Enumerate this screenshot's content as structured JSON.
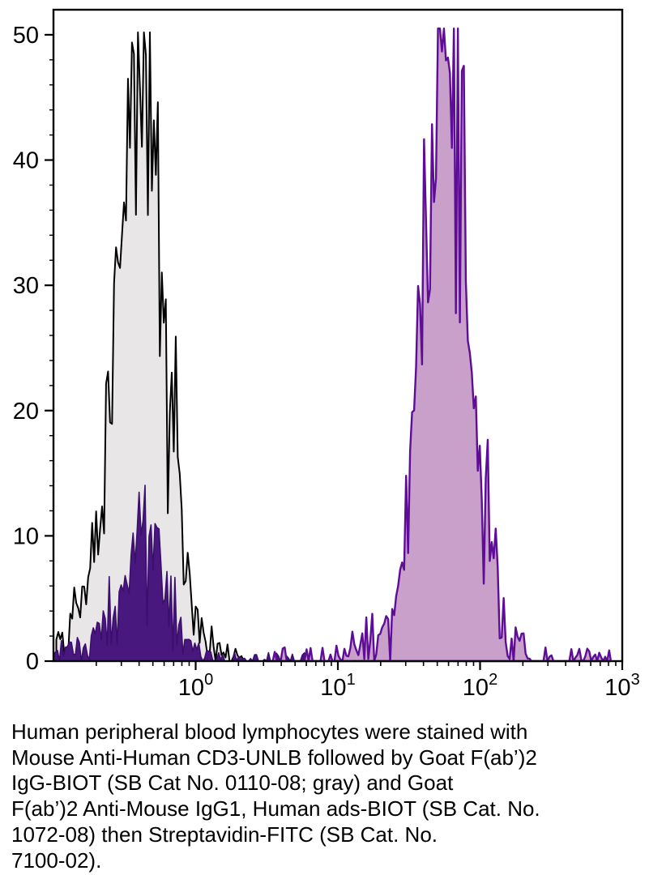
{
  "caption": {
    "text": "Human peripheral blood lymphocytes were stained with\nMouse Anti-Human CD3-UNLB followed by Goat F(ab’)2\nIgG-BIOT (SB Cat  No. 0110-08; gray) and Goat\nF(ab’)2 Anti-Mouse IgG1, Human ads-BIOT (SB Cat. No.\n1072-08) then Streptavidin-FITC (SB Cat. No.\n7100-02)."
  },
  "chart_data": {
    "type": "area",
    "subtype": "flow-cytometry-histogram-overlay",
    "title": "",
    "xlabel": "",
    "ylabel": "",
    "xscale": "log10",
    "xlim_log10": [
      -1,
      3
    ],
    "ylim": [
      0,
      52
    ],
    "grid": false,
    "legend_position": "none",
    "axis_color": "#000000",
    "xticks": [
      {
        "value": 1,
        "label_base": "10",
        "label_exp": "0"
      },
      {
        "value": 10,
        "label_base": "10",
        "label_exp": "1"
      },
      {
        "value": 100,
        "label_base": "10",
        "label_exp": "2"
      },
      {
        "value": 1000,
        "label_base": "10",
        "label_exp": "3"
      }
    ],
    "yticks": [
      0,
      10,
      20,
      30,
      40,
      50
    ],
    "y_minor_step": 2,
    "series": [
      {
        "name": "gray-control-histogram",
        "description": "IgG-BIOT control (gray fill, black outline)",
        "fill": "#e8e6e7",
        "stroke": "#000000",
        "stroke_width": 2,
        "peak_x": 0.42,
        "peak_height": 50,
        "range_log10": [
          -0.98,
          0.42
        ],
        "components": [
          {
            "mu": -0.38,
            "sigma": 0.15,
            "amp": 42
          },
          {
            "mu": -0.47,
            "sigma": 0.28,
            "amp": 7
          }
        ],
        "noise": 1.0,
        "clamp": 50.2,
        "floor": {
          "from": -0.98,
          "to": 0.3,
          "amp": 0.8,
          "p": 0.5
        }
      },
      {
        "name": "dark-purple-histogram",
        "description": "small dark purple histogram at left",
        "fill": "#49187e",
        "stroke": "#3c0e6e",
        "stroke_width": 1.6,
        "peak_x": 0.45,
        "peak_height": 11,
        "range_log10": [
          -1.0,
          0.38
        ],
        "components": [
          {
            "mu": -0.35,
            "sigma": 0.13,
            "amp": 8.5
          },
          {
            "mu": -0.5,
            "sigma": 0.28,
            "amp": 1.5
          }
        ],
        "noise": 0.9,
        "clamp": 50.2,
        "floor": {
          "from": -1.0,
          "to": 0.85,
          "amp": 0.7,
          "p": 0.45
        }
      },
      {
        "name": "purple-stained-histogram",
        "description": "CD3 stained population (light purple fill, purple outline)",
        "fill": "#c9a0ca",
        "stroke": "#5e0d96",
        "stroke_width": 2.4,
        "peak_x": 59,
        "peak_height": 49,
        "range_log10": [
          0.55,
          2.35
        ],
        "components": [
          {
            "mu": 1.77,
            "sigma": 0.15,
            "amp": 42
          },
          {
            "mu": 1.7,
            "sigma": 0.26,
            "amp": 6
          }
        ],
        "noise": 1.0,
        "clamp": 50.5,
        "floor": {
          "from": 0.5,
          "to": 2.92,
          "amp": 1.1,
          "p": 0.4
        }
      }
    ]
  }
}
